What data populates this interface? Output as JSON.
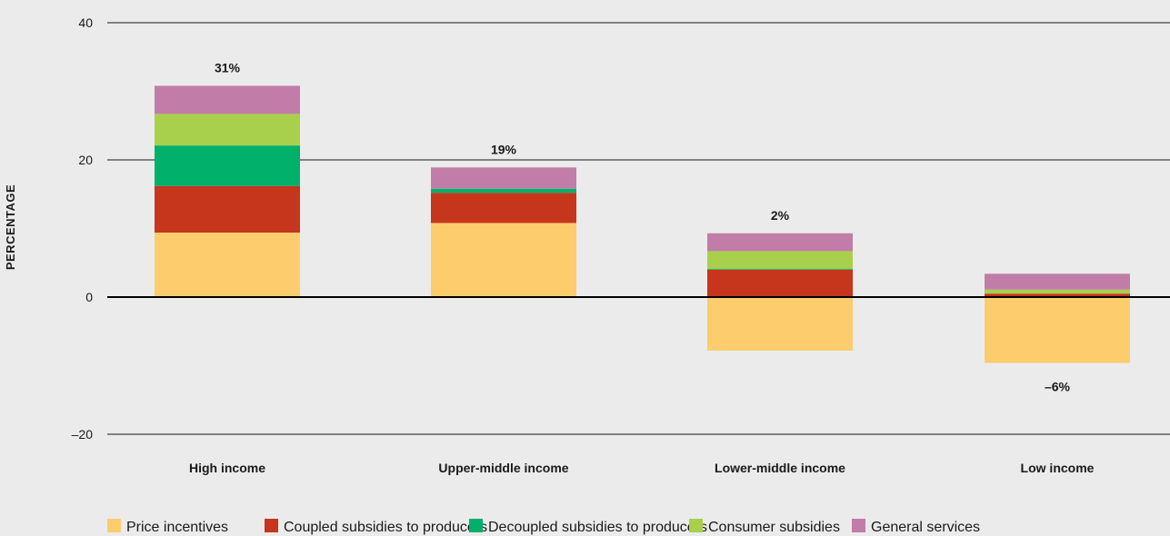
{
  "chart_data": {
    "type": "bar",
    "stacked": true,
    "ylabel": "PERCENTAGE",
    "ylim": [
      -20,
      40
    ],
    "yticks": [
      {
        "value": 40,
        "label": "40"
      },
      {
        "value": 20,
        "label": "20"
      },
      {
        "value": 0,
        "label": "0"
      },
      {
        "value": -20,
        "label": "–20"
      }
    ],
    "categories": [
      "High income",
      "Upper-middle income",
      "Lower-middle income",
      "Low income"
    ],
    "series": [
      {
        "name": "Price incentives",
        "color": "#fdcc6d",
        "values": [
          9.4,
          10.8,
          -7.8,
          -9.6
        ]
      },
      {
        "name": "Coupled subsidies to producers",
        "color": "#c5361c",
        "values": [
          6.8,
          4.4,
          4.0,
          0.5
        ]
      },
      {
        "name": "Decoupled subsidies to producers",
        "color": "#00b06b",
        "values": [
          5.9,
          0.6,
          0.1,
          0.0
        ]
      },
      {
        "name": "Consumer subsidies",
        "color": "#a8d04d",
        "values": [
          4.6,
          0.0,
          2.6,
          0.6
        ]
      },
      {
        "name": "General services",
        "color": "#c17da8",
        "values": [
          4.1,
          3.1,
          2.6,
          2.3
        ]
      }
    ],
    "totals": [
      {
        "label": "31%",
        "position": "top"
      },
      {
        "label": "19%",
        "position": "top"
      },
      {
        "label": "2%",
        "position": "top"
      },
      {
        "label": "–6%",
        "position": "bottom"
      }
    ],
    "grid": true,
    "legend_position": "bottom"
  }
}
